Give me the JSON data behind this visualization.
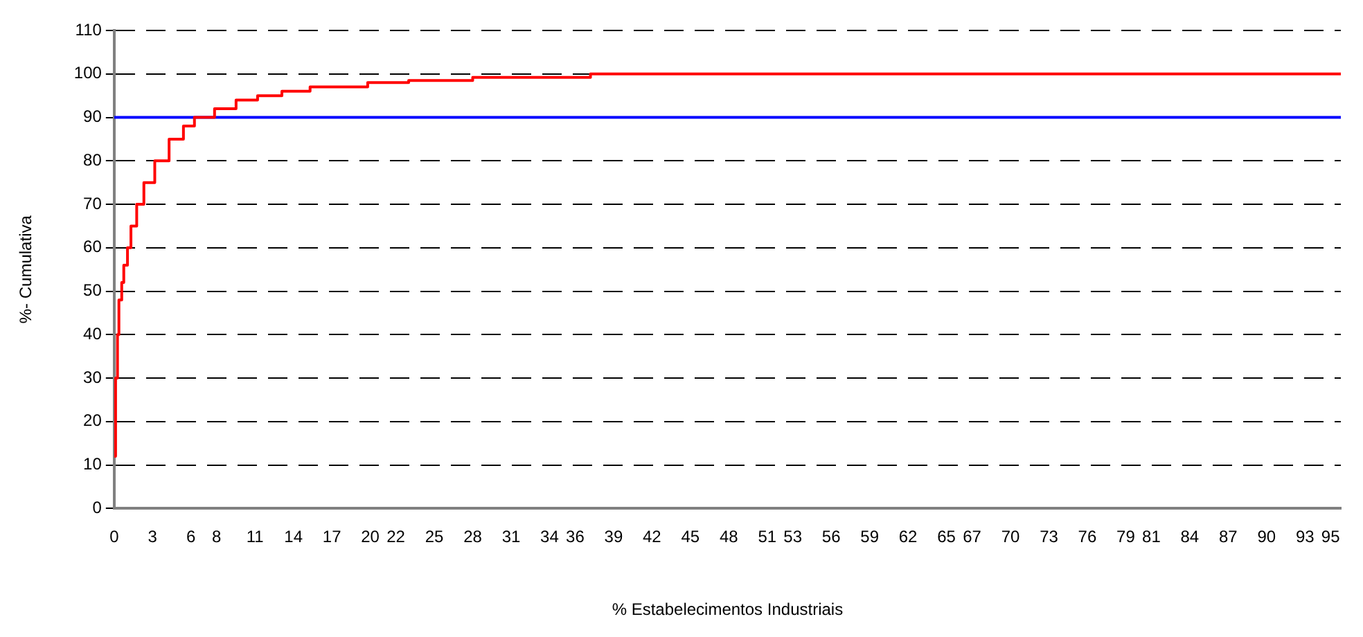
{
  "chart_data": {
    "type": "step",
    "xlabel": "% Estabelecimentos Industriais",
    "ylabel": "%- Cumulativa",
    "x": [
      0,
      0.11,
      0.26,
      0.37,
      0.59,
      0.75,
      1.04,
      1.31,
      1.76,
      2.32,
      3.17,
      4.29,
      5.41,
      6.27,
      7.84,
      9.52,
      11.2,
      13.1,
      15.3,
      19.8,
      23.0,
      28.0,
      37.2,
      95.8
    ],
    "series": [
      {
        "color": "#ff0000",
        "values": [
          12,
          30,
          40,
          48,
          52,
          56,
          60,
          65,
          70,
          75,
          80,
          85,
          88,
          90,
          92,
          94,
          95,
          96,
          97,
          98,
          98.5,
          99.2,
          100,
          100
        ]
      }
    ],
    "xlim": [
      0,
      95.8
    ],
    "xticks": [
      0,
      3,
      6,
      8,
      11,
      14,
      17,
      20,
      22,
      25,
      28,
      31,
      34,
      36,
      39,
      42,
      45,
      48,
      51,
      53,
      56,
      59,
      62,
      65,
      67,
      70,
      73,
      76,
      79,
      81,
      84,
      87,
      90,
      93,
      95
    ],
    "ylim": [
      0,
      110
    ],
    "yticks": [
      0,
      10,
      20,
      30,
      40,
      50,
      60,
      70,
      80,
      90,
      100,
      110
    ],
    "grid": "y",
    "line_style": "solid",
    "marker": "none",
    "legend": false,
    "ref_lines": [
      {
        "axis": "y",
        "value": 90,
        "color": "#0000ff"
      }
    ]
  }
}
